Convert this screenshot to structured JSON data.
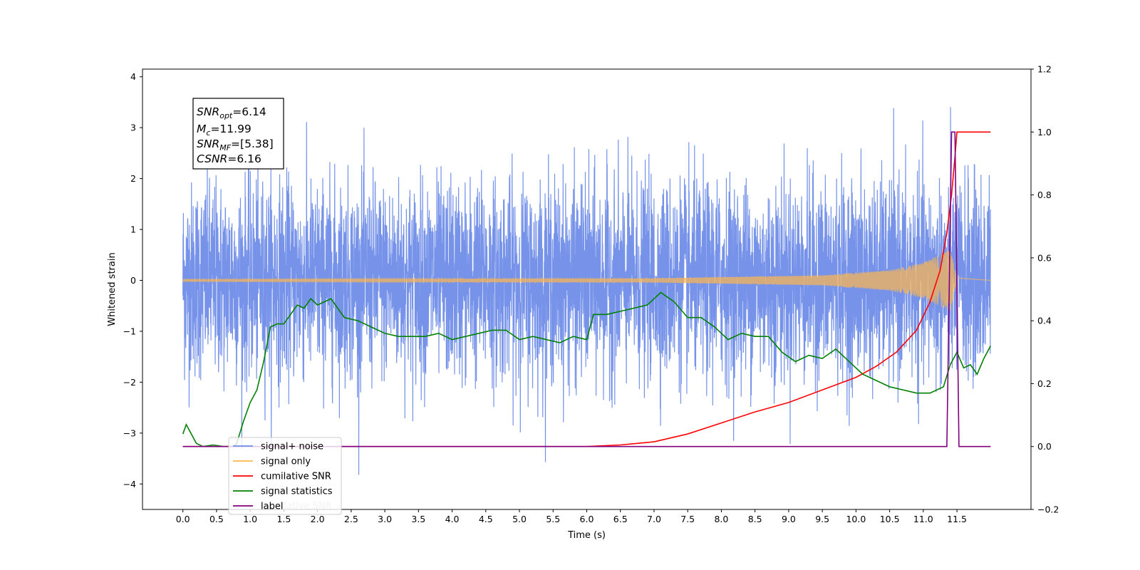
{
  "chart_data": {
    "type": "line",
    "xlabel": "Time (s)",
    "ylabel": "Whitened strain",
    "xlim": [
      -0.6,
      12.6
    ],
    "ylim": [
      -4.5,
      4.15
    ],
    "y2lim": [
      -0.2,
      1.2
    ],
    "x_ticks": [
      "0.0",
      "0.5",
      "1.0",
      "1.5",
      "2.0",
      "2.5",
      "3.0",
      "3.5",
      "4.0",
      "4.5",
      "5.0",
      "5.5",
      "6.0",
      "6.5",
      "7.0",
      "7.5",
      "8.0",
      "8.5",
      "9.0",
      "9.5",
      "10.0",
      "10.5",
      "11.0",
      "11.5"
    ],
    "y_ticks": [
      "4",
      "3",
      "2",
      "1",
      "0",
      "−1",
      "−2",
      "−3",
      "−4"
    ],
    "y2_ticks": [
      "1.2",
      "1.0",
      "0.8",
      "0.6",
      "0.4",
      "0.2",
      "0.0",
      "−0.2"
    ],
    "grid": false,
    "legend_position": "lower-left",
    "annotation": {
      "line1_main": "SNR",
      "line1_sub": "opt",
      "line1_val": "=6.14",
      "line2_main": "M",
      "line2_sub": "c",
      "line2_val": "=11.99",
      "line3_main": "SNR",
      "line3_sub": "MF",
      "line3_val": "=[5.38]",
      "line4_main": "CSNR",
      "line4_val": "=6.16"
    },
    "ghost_legend_text": "cumilative SNR",
    "series": [
      {
        "name": "signal+ noise",
        "color": "#6f8de8",
        "axis": "left",
        "duration": 12.0,
        "noise_std": 0.95,
        "noise_range": [
          -4.1,
          3.75
        ]
      },
      {
        "name": "signal only",
        "color": "#ffb74d",
        "axis": "left",
        "amplitude_envelope": [
          [
            0.0,
            0.02
          ],
          [
            7.0,
            0.04
          ],
          [
            9.5,
            0.1
          ],
          [
            10.5,
            0.2
          ],
          [
            11.0,
            0.35
          ],
          [
            11.4,
            0.6
          ],
          [
            11.5,
            0.05
          ],
          [
            12.0,
            0.0
          ]
        ]
      },
      {
        "name": "cumilative SNR",
        "color": "#ff0000",
        "axis": "right",
        "x": [
          0.0,
          6.0,
          6.5,
          7.0,
          7.5,
          8.0,
          8.5,
          9.0,
          9.5,
          10.0,
          10.3,
          10.6,
          10.9,
          11.1,
          11.25,
          11.35,
          11.42,
          11.47,
          11.5,
          12.0
        ],
        "y": [
          0.0,
          0.0,
          0.005,
          0.015,
          0.04,
          0.075,
          0.11,
          0.14,
          0.18,
          0.22,
          0.255,
          0.3,
          0.37,
          0.46,
          0.56,
          0.68,
          0.8,
          0.92,
          1.0,
          1.0
        ]
      },
      {
        "name": "signal statistics",
        "color": "#008000",
        "axis": "right",
        "x": [
          0.0,
          0.05,
          0.1,
          0.2,
          0.3,
          0.45,
          0.6,
          0.75,
          0.8,
          0.9,
          1.0,
          1.1,
          1.2,
          1.3,
          1.4,
          1.5,
          1.6,
          1.7,
          1.8,
          1.9,
          2.0,
          2.2,
          2.4,
          2.6,
          2.8,
          3.0,
          3.2,
          3.4,
          3.6,
          3.8,
          4.0,
          4.2,
          4.4,
          4.6,
          4.8,
          5.0,
          5.2,
          5.4,
          5.6,
          5.8,
          6.0,
          6.1,
          6.3,
          6.5,
          6.7,
          6.9,
          7.1,
          7.3,
          7.5,
          7.7,
          7.9,
          8.1,
          8.3,
          8.5,
          8.7,
          8.9,
          9.1,
          9.3,
          9.5,
          9.7,
          9.9,
          10.1,
          10.3,
          10.5,
          10.7,
          10.9,
          11.1,
          11.3,
          11.4,
          11.5,
          11.6,
          11.7,
          11.8,
          11.9,
          12.0
        ],
        "y": [
          0.04,
          0.07,
          0.05,
          0.01,
          0.0,
          0.005,
          0.0,
          0.0,
          0.01,
          0.08,
          0.14,
          0.18,
          0.27,
          0.38,
          0.39,
          0.39,
          0.42,
          0.45,
          0.44,
          0.47,
          0.45,
          0.47,
          0.41,
          0.4,
          0.38,
          0.36,
          0.35,
          0.35,
          0.35,
          0.36,
          0.34,
          0.35,
          0.36,
          0.37,
          0.37,
          0.34,
          0.35,
          0.34,
          0.33,
          0.35,
          0.34,
          0.42,
          0.42,
          0.43,
          0.44,
          0.45,
          0.49,
          0.46,
          0.41,
          0.41,
          0.38,
          0.34,
          0.36,
          0.35,
          0.35,
          0.3,
          0.27,
          0.29,
          0.28,
          0.31,
          0.27,
          0.23,
          0.21,
          0.19,
          0.18,
          0.17,
          0.17,
          0.19,
          0.26,
          0.3,
          0.25,
          0.26,
          0.23,
          0.28,
          0.32
        ]
      },
      {
        "name": "label",
        "color": "#800080",
        "axis": "right",
        "x": [
          0.0,
          11.35,
          11.42,
          11.47,
          11.53,
          12.0
        ],
        "y": [
          0.0,
          0.0,
          1.0,
          1.0,
          0.0,
          0.0
        ]
      }
    ]
  }
}
